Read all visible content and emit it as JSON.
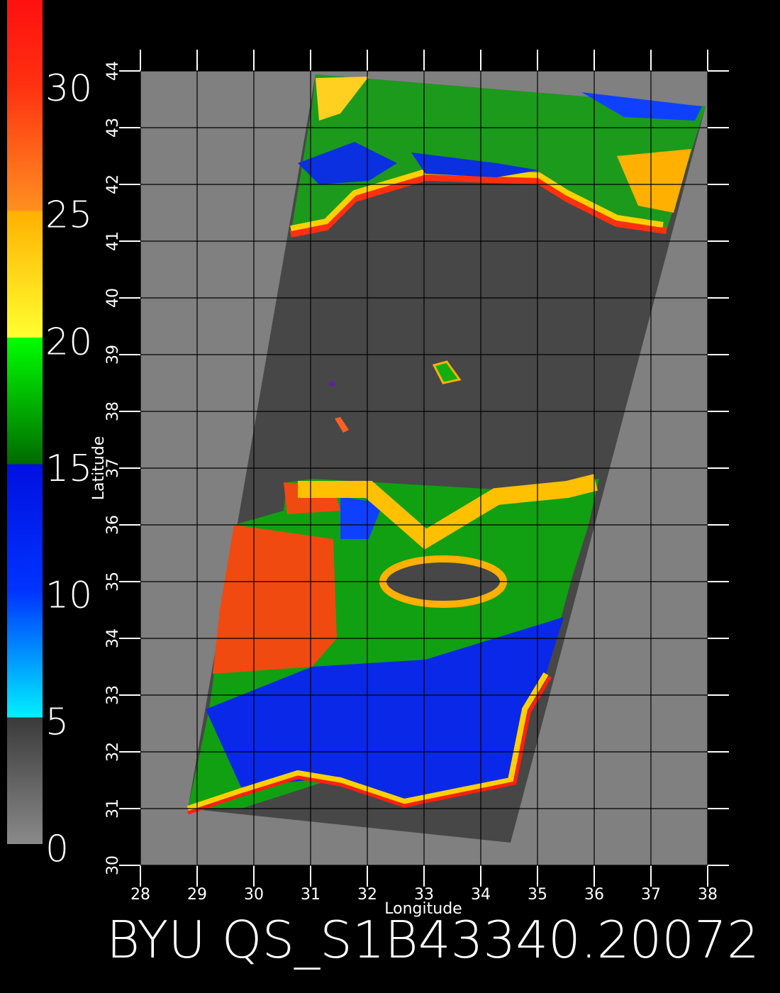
{
  "colorbar": {
    "lim": [
      0,
      33.3
    ],
    "ticks": [
      0,
      5,
      10,
      15,
      20,
      25,
      30
    ]
  },
  "map": {
    "xlabel": "Longitude",
    "ylabel": "Latitude",
    "xlim": [
      28,
      38
    ],
    "ylim": [
      30,
      44
    ],
    "xticks": [
      28,
      29,
      30,
      31,
      32,
      33,
      34,
      35,
      36,
      37,
      38
    ],
    "yticks": [
      30,
      31,
      32,
      33,
      34,
      35,
      36,
      37,
      38,
      39,
      40,
      41,
      42,
      43,
      44
    ]
  },
  "title": "BYU QS_S1B43340.20072"
}
